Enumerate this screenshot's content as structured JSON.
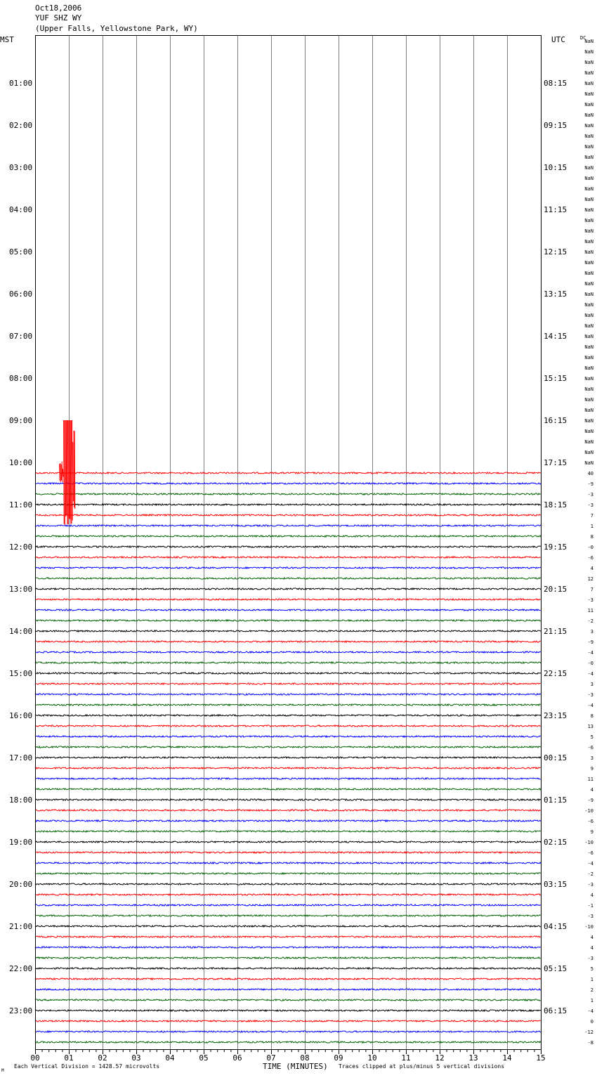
{
  "header": {
    "date": "Oct18,2006",
    "station": "YUF SHZ WY",
    "location": "(Upper Falls, Yellowstone Park, WY)"
  },
  "corner_labels": {
    "left": "MST",
    "right": "UTC",
    "dc": "DC"
  },
  "footer": {
    "scale": "Each Vertical Division = 1428.57 microvolts",
    "xlabel": "TIME (MINUTES)",
    "clip_note": "Traces clipped at plus/minus 5 vertical divisions",
    "mark": "M"
  },
  "colors": {
    "trace_cycle": [
      "#000000",
      "#ff0000",
      "#0000ff",
      "#006400"
    ],
    "grid": "#808080",
    "frame": "#000000",
    "event": "#ff0000"
  },
  "chart_data": {
    "type": "line",
    "title": "Oct18,2006 YUF SHZ WY (Upper Falls, Yellowstone Park, WY)",
    "xlabel": "TIME (MINUTES)",
    "ylabel": "",
    "xlim": [
      0,
      15
    ],
    "x_ticks": [
      "00",
      "01",
      "02",
      "03",
      "04",
      "05",
      "06",
      "07",
      "08",
      "09",
      "10",
      "11",
      "12",
      "13",
      "14",
      "15"
    ],
    "rows_total": 96,
    "minutes_per_row": 15,
    "first_trace_row": 41,
    "mst_labels": [
      "01:00",
      "02:00",
      "03:00",
      "04:00",
      "05:00",
      "06:00",
      "07:00",
      "08:00",
      "09:00",
      "10:00",
      "11:00",
      "12:00",
      "13:00",
      "14:00",
      "15:00",
      "16:00",
      "17:00",
      "18:00",
      "19:00",
      "20:00",
      "21:00",
      "22:00",
      "23:00"
    ],
    "utc_labels": [
      "08:15",
      "09:15",
      "10:15",
      "11:15",
      "12:15",
      "13:15",
      "14:15",
      "15:15",
      "16:15",
      "17:15",
      "18:15",
      "19:15",
      "20:15",
      "21:15",
      "22:15",
      "23:15",
      "00:15",
      "01:15",
      "02:15",
      "03:15",
      "04:15",
      "05:15",
      "06:15"
    ],
    "dc_offsets": [
      "NaN",
      "NaN",
      "NaN",
      "NaN",
      "NaN",
      "NaN",
      "NaN",
      "NaN",
      "NaN",
      "NaN",
      "NaN",
      "NaN",
      "NaN",
      "NaN",
      "NaN",
      "NaN",
      "NaN",
      "NaN",
      "NaN",
      "NaN",
      "NaN",
      "NaN",
      "NaN",
      "NaN",
      "NaN",
      "NaN",
      "NaN",
      "NaN",
      "NaN",
      "NaN",
      "NaN",
      "NaN",
      "NaN",
      "NaN",
      "NaN",
      "NaN",
      "NaN",
      "NaN",
      "NaN",
      "NaN",
      "NaN",
      "40",
      "-9",
      "-3",
      "-3",
      "7",
      "1",
      "8",
      "-0",
      "-6",
      "4",
      "12",
      "7",
      "-3",
      "11",
      "-2",
      "3",
      "-9",
      "-4",
      "-0",
      "-4",
      "3",
      "-3",
      "-4",
      "8",
      "13",
      "5",
      "-6",
      "3",
      "9",
      "11",
      "4",
      "-9",
      "-10",
      "-6",
      "9",
      "-10",
      "-6",
      "-4",
      "-2",
      "-3",
      "4",
      "-1",
      "-3",
      "-10",
      "4",
      "4",
      "-3",
      "5",
      "1",
      "2",
      "1",
      "-4",
      "0",
      "-12",
      "-8"
    ],
    "events": [
      {
        "row": 41,
        "start_min": 0.72,
        "end_min": 1.18,
        "amplitude_div": 5,
        "clipped": true
      }
    ],
    "grid": true,
    "vertical_division_microvolts": 1428.57
  }
}
